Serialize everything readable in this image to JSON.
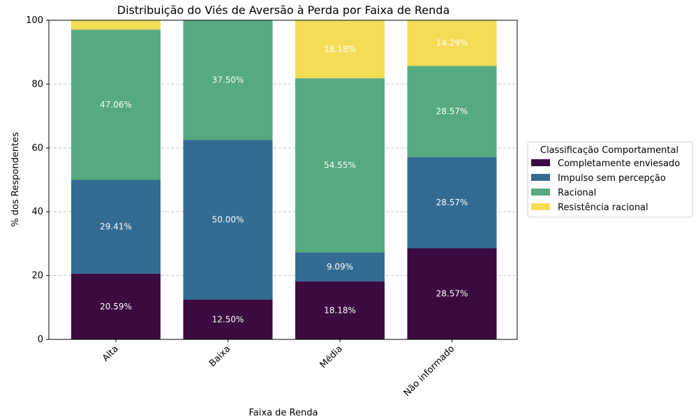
{
  "chart_data": {
    "type": "bar",
    "stacked": true,
    "title": "Distribuição do Viés de Aversão à Perda por Faixa de Renda",
    "xlabel": "Faixa de Renda",
    "ylabel": "% dos Respondentes",
    "ylim": [
      0,
      100
    ],
    "yticks": [
      "0",
      "20",
      "40",
      "60",
      "80",
      "100"
    ],
    "grid": "horizontal dashed",
    "categories": [
      "Alta",
      "Baixa",
      "Média",
      "Não informado"
    ],
    "legend": {
      "title": "Classificação Comportamental",
      "placement": "right, outside plot"
    },
    "series": [
      {
        "name": "Completamente enviesado",
        "color": "#3b0a40",
        "values": [
          20.59,
          12.5,
          18.18,
          28.57
        ],
        "labels": [
          "20.59%",
          "12.50%",
          "18.18%",
          "28.57%"
        ]
      },
      {
        "name": "Impulso sem percepção",
        "color": "#336b92",
        "values": [
          29.41,
          50.0,
          9.09,
          28.57
        ],
        "labels": [
          "29.41%",
          "50.00%",
          "9.09%",
          "28.57%"
        ]
      },
      {
        "name": "Racional",
        "color": "#55aa80",
        "values": [
          47.06,
          37.5,
          54.55,
          28.57
        ],
        "labels": [
          "47.06%",
          "37.50%",
          "54.55%",
          "28.57%"
        ]
      },
      {
        "name": "Resistência racional",
        "color": "#f5dc57",
        "values": [
          2.94,
          0,
          18.18,
          14.29
        ],
        "labels": [
          "",
          "",
          "18.18%",
          "14.29%"
        ]
      }
    ]
  }
}
